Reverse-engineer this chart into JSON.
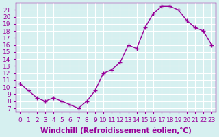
{
  "x": [
    0,
    1,
    2,
    3,
    4,
    5,
    6,
    7,
    8,
    9,
    10,
    11,
    12,
    13,
    14,
    15,
    16,
    17,
    18,
    19,
    20,
    21,
    22,
    23
  ],
  "y": [
    10.5,
    9.5,
    8.5,
    8.0,
    8.5,
    8.0,
    7.5,
    7.0,
    8.0,
    9.5,
    12.0,
    12.5,
    13.5,
    16.0,
    15.5,
    18.5,
    20.5,
    21.5,
    21.5,
    21.0,
    19.5,
    18.5,
    18.0,
    16.0
  ],
  "line_color": "#990099",
  "marker": "+",
  "bg_color": "#d6f0f0",
  "grid_color": "#ffffff",
  "xlabel": "Windchill (Refroidissement éolien,°C)",
  "xlabel_fontsize": 7.5,
  "ylabel_ticks": [
    7,
    8,
    9,
    10,
    11,
    12,
    13,
    14,
    15,
    16,
    17,
    18,
    19,
    20,
    21
  ],
  "ylim": [
    6.5,
    22.0
  ],
  "xlim": [
    -0.5,
    23.5
  ],
  "tick_fontsize": 6.5,
  "tick_color": "#990099",
  "spine_color": "#990099"
}
